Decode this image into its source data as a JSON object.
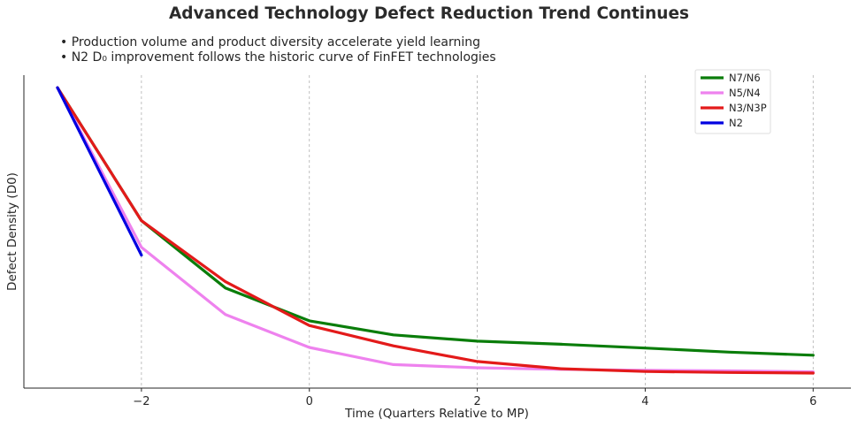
{
  "chart_data": {
    "type": "line",
    "title": "Advanced Technology Defect Reduction Trend Continues",
    "notes": [
      "• Production volume and product diversity accelerate yield learning",
      "• N2 D₀ improvement follows the historic curve of FinFET technologies"
    ],
    "xlabel": "Time (Quarters Relative to MP)",
    "ylabel": "Defect Density (D0)",
    "xlim": [
      -3.4,
      6.45
    ],
    "ylim": [
      0,
      1.0
    ],
    "xticks": [
      -2,
      0,
      2,
      4,
      6
    ],
    "xtick_labels": [
      "−2",
      "0",
      "2",
      "4",
      "6"
    ],
    "grid": "x-dashed",
    "legend_position": "top-right",
    "series": [
      {
        "name": "N7/N6",
        "color": "#0a7d0a",
        "x": [
          -3,
          -2,
          -1,
          0,
          1,
          2,
          3,
          4,
          5,
          6
        ],
        "y": [
          0.96,
          0.535,
          0.32,
          0.215,
          0.17,
          0.15,
          0.14,
          0.128,
          0.115,
          0.105
        ]
      },
      {
        "name": "N5/N4",
        "color": "#ee82ee",
        "x": [
          -3,
          -2,
          -1,
          0,
          1,
          2,
          3,
          4,
          5,
          6
        ],
        "y": [
          0.96,
          0.45,
          0.235,
          0.13,
          0.075,
          0.065,
          0.06,
          0.057,
          0.055,
          0.052
        ]
      },
      {
        "name": "N3/N3P",
        "color": "#e31a1a",
        "x": [
          -3,
          -2,
          -1,
          0,
          1,
          2,
          3,
          4,
          5,
          6
        ],
        "y": [
          0.96,
          0.535,
          0.34,
          0.2,
          0.135,
          0.085,
          0.062,
          0.053,
          0.05,
          0.048
        ]
      },
      {
        "name": "N2",
        "color": "#0000e0",
        "x": [
          -3,
          -2
        ],
        "y": [
          0.96,
          0.425
        ]
      }
    ]
  }
}
